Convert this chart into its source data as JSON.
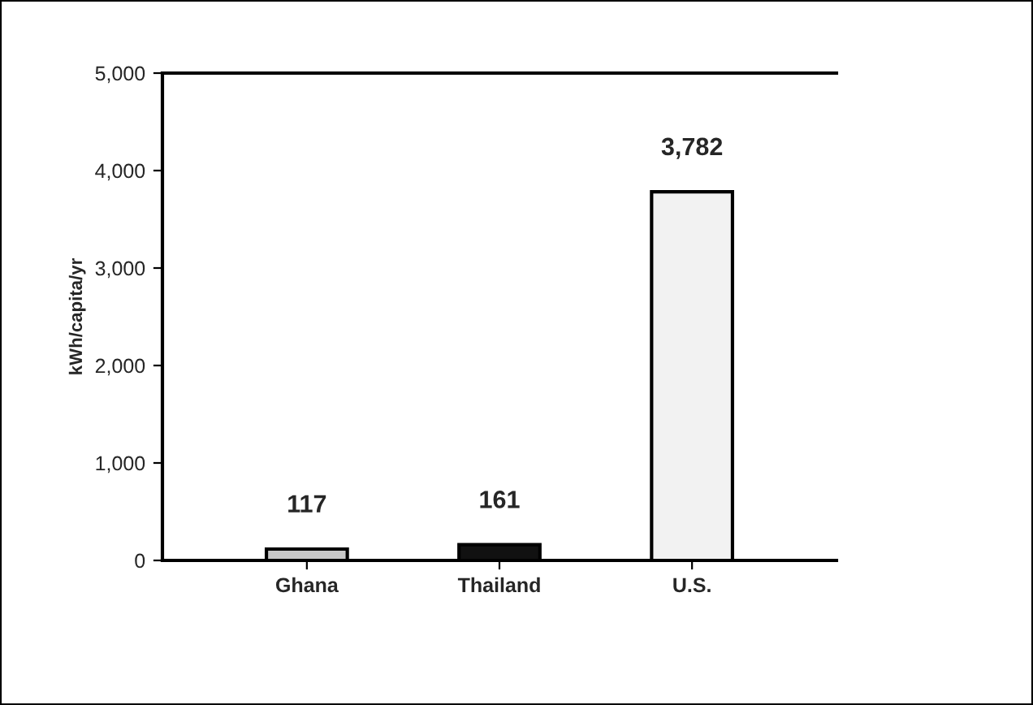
{
  "chart_data": {
    "type": "bar",
    "ylabel": "kWh/capita/yr",
    "categories": [
      "Ghana",
      "Thailand",
      "U.S."
    ],
    "values": [
      117,
      161,
      3782
    ],
    "colors": [
      "#c8c8c8",
      "#111111",
      "#f2f2f2"
    ],
    "value_labels": [
      "117",
      "161",
      "3,782"
    ],
    "ylim": [
      0,
      5000
    ],
    "yticks": [
      {
        "value": 0,
        "label": "0"
      },
      {
        "value": 1000,
        "label": "1,000"
      },
      {
        "value": 2000,
        "label": "2,000"
      },
      {
        "value": 3000,
        "label": "3,000"
      },
      {
        "value": 4000,
        "label": "4,000"
      },
      {
        "value": 5000,
        "label": "5,000"
      }
    ],
    "grid": false,
    "legend": false
  }
}
